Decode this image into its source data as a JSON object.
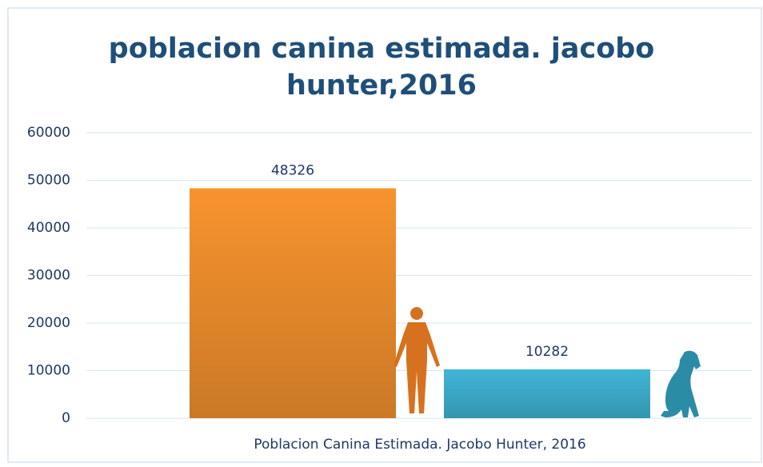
{
  "chart_data": {
    "type": "bar",
    "title": [
      "poblacion canina estimada. jacobo",
      "hunter,2016"
    ],
    "x_label": "Poblacion Canina Estimada. Jacobo Hunter, 2016",
    "categories": [
      null,
      null
    ],
    "values": [
      48326,
      10282
    ],
    "colors": [
      "#f7932e",
      "#3fb6d6"
    ],
    "ylim": [
      0,
      60000
    ],
    "yticks": [
      0,
      10000,
      20000,
      30000,
      40000,
      50000,
      60000
    ],
    "grid": true
  }
}
